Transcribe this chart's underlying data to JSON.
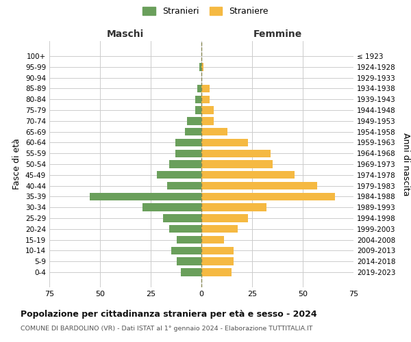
{
  "age_groups": [
    "0-4",
    "5-9",
    "10-14",
    "15-19",
    "20-24",
    "25-29",
    "30-34",
    "35-39",
    "40-44",
    "45-49",
    "50-54",
    "55-59",
    "60-64",
    "65-69",
    "70-74",
    "75-79",
    "80-84",
    "85-89",
    "90-94",
    "95-99",
    "100+"
  ],
  "birth_years": [
    "2019-2023",
    "2014-2018",
    "2009-2013",
    "2004-2008",
    "1999-2003",
    "1994-1998",
    "1989-1993",
    "1984-1988",
    "1979-1983",
    "1974-1978",
    "1969-1973",
    "1964-1968",
    "1959-1963",
    "1954-1958",
    "1949-1953",
    "1944-1948",
    "1939-1943",
    "1934-1938",
    "1929-1933",
    "1924-1928",
    "≤ 1923"
  ],
  "maschi": [
    10,
    12,
    15,
    12,
    16,
    19,
    29,
    55,
    17,
    22,
    16,
    13,
    13,
    8,
    7,
    3,
    3,
    2,
    0,
    1,
    0
  ],
  "femmine": [
    15,
    16,
    16,
    11,
    18,
    23,
    32,
    66,
    57,
    46,
    35,
    34,
    23,
    13,
    6,
    6,
    4,
    4,
    0,
    1,
    0
  ],
  "color_maschi": "#6a9f5b",
  "color_femmine": "#f5b942",
  "title": "Popolazione per cittadinanza straniera per età e sesso - 2024",
  "subtitle": "COMUNE DI BARDOLINO (VR) - Dati ISTAT al 1° gennaio 2024 - Elaborazione TUTTITALIA.IT",
  "ylabel_left": "Fasce di età",
  "ylabel_right": "Anni di nascita",
  "xlabel_maschi": "Maschi",
  "xlabel_femmine": "Femmine",
  "legend_stranieri": "Stranieri",
  "legend_straniere": "Straniere",
  "xlim": 75,
  "background_color": "#ffffff",
  "grid_color": "#cccccc"
}
